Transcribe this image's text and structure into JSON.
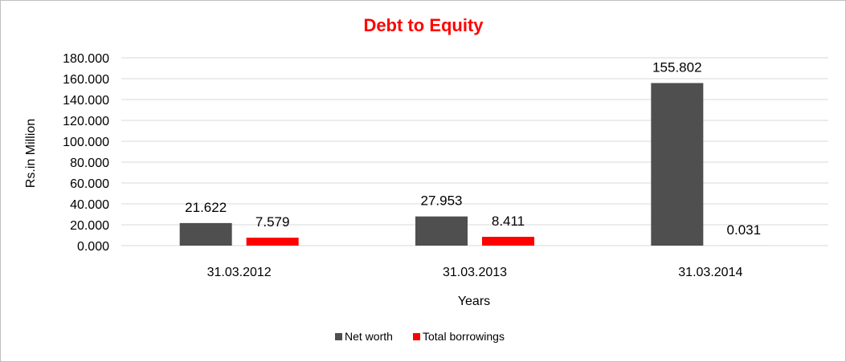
{
  "chart_data": {
    "type": "bar",
    "title": "Debt to Equity",
    "title_color": "#ff0000",
    "xlabel": "Years",
    "ylabel": "Rs.in Million",
    "categories": [
      "31.03.2012",
      "31.03.2013",
      "31.03.2014"
    ],
    "series": [
      {
        "name": "Net worth",
        "values": [
          21.622,
          27.953,
          155.802
        ],
        "labels": [
          "21.622",
          "27.953",
          "155.802"
        ],
        "color": "#4f4f4f"
      },
      {
        "name": "Total borrowings",
        "values": [
          7.579,
          8.411,
          0.031
        ],
        "labels": [
          "7.579",
          "8.411",
          "0.031"
        ],
        "color": "#ff0000"
      }
    ],
    "ylim": [
      0,
      180
    ],
    "yticks": [
      "0.000",
      "20.000",
      "40.000",
      "60.000",
      "80.000",
      "100.000",
      "120.000",
      "140.000",
      "160.000",
      "180.000"
    ],
    "ytick_values": [
      0,
      20,
      40,
      60,
      80,
      100,
      120,
      140,
      160,
      180
    ],
    "grid": true,
    "gridline_color": "#d9d9d9",
    "legend_position": "bottom"
  }
}
